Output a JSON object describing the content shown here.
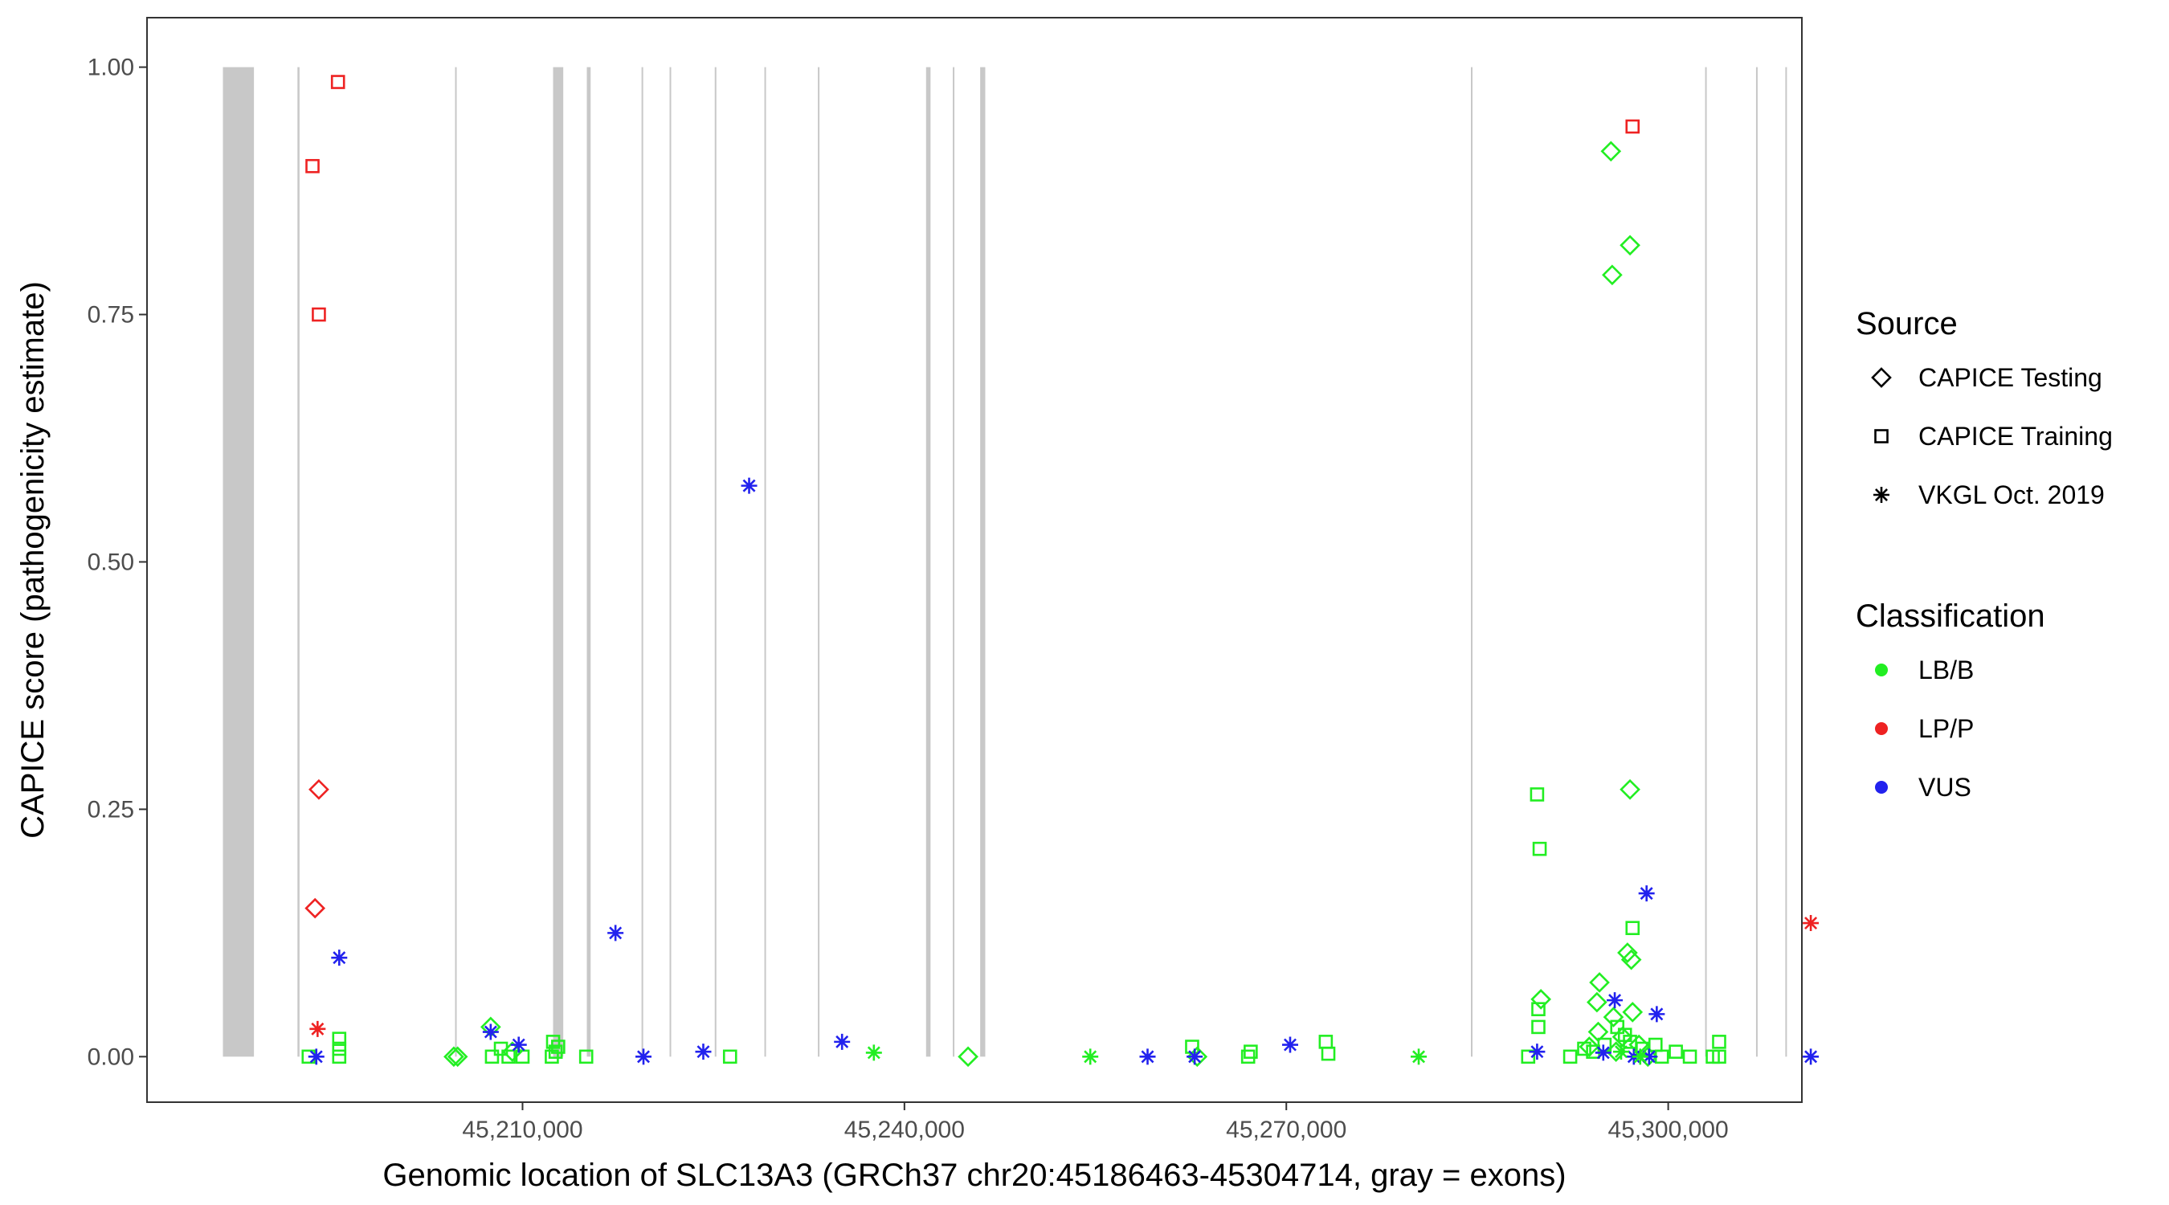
{
  "chart_data": {
    "type": "scatter",
    "title": "",
    "xlabel": "Genomic location of SLC13A3 (GRCh37 chr20:45186463-45304714, gray = exons)",
    "ylabel": "CAPICE score (pathogenicity estimate)",
    "xlim": [
      45180500,
      45310500
    ],
    "ylim": [
      -0.046,
      1.05
    ],
    "x_ticks": [
      45210000,
      45240000,
      45270000,
      45300000
    ],
    "x_tick_labels": [
      "45,210,000",
      "45,240,000",
      "45,270,000",
      "45,300,000"
    ],
    "y_ticks": [
      0,
      0.25,
      0.5,
      0.75,
      1
    ],
    "y_tick_labels": [
      "0.00",
      "0.25",
      "0.50",
      "0.75",
      "1.00"
    ],
    "grid": false,
    "panel_border": true,
    "exon_color": "#c8c8c8",
    "exons": [
      [
        45186463,
        45188900
      ],
      [
        45192320,
        45192480
      ],
      [
        45204700,
        45204820
      ],
      [
        45212400,
        45213200
      ],
      [
        45215050,
        45215350
      ],
      [
        45219350,
        45219450
      ],
      [
        45221550,
        45221650
      ],
      [
        45225100,
        45225200
      ],
      [
        45229000,
        45229120
      ],
      [
        45233200,
        45233320
      ],
      [
        45241700,
        45242050
      ],
      [
        45243800,
        45243920
      ],
      [
        45245950,
        45246350
      ],
      [
        45284500,
        45284620
      ],
      [
        45302900,
        45303020
      ],
      [
        45306900,
        45307020
      ],
      [
        45309200,
        45309320
      ]
    ],
    "colors": {
      "LB/B": "#22ee22",
      "LP/P": "#ee2222",
      "VUS": "#2222ee"
    },
    "legend_placement": "right",
    "legend": {
      "source_title": "Source",
      "source_items": [
        {
          "label": "CAPICE Testing",
          "shape": "diamond"
        },
        {
          "label": "CAPICE Training",
          "shape": "square"
        },
        {
          "label": "VKGL Oct. 2019",
          "shape": "asterisk"
        }
      ],
      "classification_title": "Classification",
      "classification_items": [
        {
          "label": "LB/B",
          "color": "#22ee22"
        },
        {
          "label": "LP/P",
          "color": "#ee2222"
        },
        {
          "label": "VUS",
          "color": "#2222ee"
        }
      ]
    },
    "series": [
      {
        "name": "CAPICE Testing",
        "shape": "diamond",
        "points": [
          {
            "x": 45194000,
            "y": 0.27,
            "class": "LP/P"
          },
          {
            "x": 45193700,
            "y": 0.15,
            "class": "LP/P"
          },
          {
            "x": 45204900,
            "y": 0.0,
            "class": "LB/B"
          },
          {
            "x": 45204600,
            "y": 0.0,
            "class": "LB/B"
          },
          {
            "x": 45207500,
            "y": 0.03,
            "class": "LB/B"
          },
          {
            "x": 45209200,
            "y": 0.005,
            "class": "LB/B"
          },
          {
            "x": 45245000,
            "y": 0.0,
            "class": "LB/B"
          },
          {
            "x": 45263000,
            "y": 0.0,
            "class": "LB/B"
          },
          {
            "x": 45295500,
            "y": 0.915,
            "class": "LB/B"
          },
          {
            "x": 45297000,
            "y": 0.82,
            "class": "LB/B"
          },
          {
            "x": 45295600,
            "y": 0.79,
            "class": "LB/B"
          },
          {
            "x": 45297000,
            "y": 0.27,
            "class": "LB/B"
          },
          {
            "x": 45296800,
            "y": 0.105,
            "class": "LB/B"
          },
          {
            "x": 45297100,
            "y": 0.098,
            "class": "LB/B"
          },
          {
            "x": 45290000,
            "y": 0.058,
            "class": "LB/B"
          },
          {
            "x": 45294600,
            "y": 0.075,
            "class": "LB/B"
          },
          {
            "x": 45294400,
            "y": 0.055,
            "class": "LB/B"
          },
          {
            "x": 45295700,
            "y": 0.04,
            "class": "LB/B"
          },
          {
            "x": 45297200,
            "y": 0.045,
            "class": "LB/B"
          },
          {
            "x": 45294500,
            "y": 0.025,
            "class": "LB/B"
          },
          {
            "x": 45296400,
            "y": 0.02,
            "class": "LB/B"
          },
          {
            "x": 45293800,
            "y": 0.01,
            "class": "LB/B"
          },
          {
            "x": 45295900,
            "y": 0.005,
            "class": "LB/B"
          },
          {
            "x": 45297700,
            "y": 0.012,
            "class": "LB/B"
          },
          {
            "x": 45298400,
            "y": 0.0,
            "class": "LB/B"
          }
        ]
      },
      {
        "name": "CAPICE Training",
        "shape": "square",
        "points": [
          {
            "x": 45195500,
            "y": 0.985,
            "class": "LP/P"
          },
          {
            "x": 45193500,
            "y": 0.9,
            "class": "LP/P"
          },
          {
            "x": 45194000,
            "y": 0.75,
            "class": "LP/P"
          },
          {
            "x": 45297200,
            "y": 0.94,
            "class": "LP/P"
          },
          {
            "x": 45193200,
            "y": 0.0,
            "class": "LB/B"
          },
          {
            "x": 45195600,
            "y": 0.0,
            "class": "LB/B"
          },
          {
            "x": 45195600,
            "y": 0.018,
            "class": "LB/B"
          },
          {
            "x": 45195600,
            "y": 0.008,
            "class": "LB/B"
          },
          {
            "x": 45207600,
            "y": 0.0,
            "class": "LB/B"
          },
          {
            "x": 45208300,
            "y": 0.008,
            "class": "LB/B"
          },
          {
            "x": 45208900,
            "y": 0.0,
            "class": "LB/B"
          },
          {
            "x": 45210000,
            "y": 0.0,
            "class": "LB/B"
          },
          {
            "x": 45212300,
            "y": 0.0,
            "class": "LB/B"
          },
          {
            "x": 45212400,
            "y": 0.015,
            "class": "LB/B"
          },
          {
            "x": 45212600,
            "y": 0.005,
            "class": "LB/B"
          },
          {
            "x": 45212800,
            "y": 0.01,
            "class": "LB/B"
          },
          {
            "x": 45215000,
            "y": 0.0,
            "class": "LB/B"
          },
          {
            "x": 45226300,
            "y": 0.0,
            "class": "LB/B"
          },
          {
            "x": 45262600,
            "y": 0.01,
            "class": "LB/B"
          },
          {
            "x": 45267000,
            "y": 0.0,
            "class": "LB/B"
          },
          {
            "x": 45267200,
            "y": 0.005,
            "class": "LB/B"
          },
          {
            "x": 45273100,
            "y": 0.015,
            "class": "LB/B"
          },
          {
            "x": 45273300,
            "y": 0.003,
            "class": "LB/B"
          },
          {
            "x": 45289700,
            "y": 0.265,
            "class": "LB/B"
          },
          {
            "x": 45289900,
            "y": 0.21,
            "class": "LB/B"
          },
          {
            "x": 45297200,
            "y": 0.13,
            "class": "LB/B"
          },
          {
            "x": 45289800,
            "y": 0.048,
            "class": "LB/B"
          },
          {
            "x": 45289800,
            "y": 0.03,
            "class": "LB/B"
          },
          {
            "x": 45289000,
            "y": 0.0,
            "class": "LB/B"
          },
          {
            "x": 45292300,
            "y": 0.0,
            "class": "LB/B"
          },
          {
            "x": 45293400,
            "y": 0.008,
            "class": "LB/B"
          },
          {
            "x": 45294100,
            "y": 0.005,
            "class": "LB/B"
          },
          {
            "x": 45295000,
            "y": 0.012,
            "class": "LB/B"
          },
          {
            "x": 45296000,
            "y": 0.03,
            "class": "LB/B"
          },
          {
            "x": 45296600,
            "y": 0.022,
            "class": "LB/B"
          },
          {
            "x": 45297000,
            "y": 0.015,
            "class": "LB/B"
          },
          {
            "x": 45298000,
            "y": 0.008,
            "class": "LB/B"
          },
          {
            "x": 45299000,
            "y": 0.012,
            "class": "LB/B"
          },
          {
            "x": 45299500,
            "y": 0.0,
            "class": "LB/B"
          },
          {
            "x": 45300600,
            "y": 0.005,
            "class": "LB/B"
          },
          {
            "x": 45301700,
            "y": 0.0,
            "class": "LB/B"
          },
          {
            "x": 45303500,
            "y": 0.0,
            "class": "LB/B"
          },
          {
            "x": 45304000,
            "y": 0.015,
            "class": "LB/B"
          },
          {
            "x": 45304000,
            "y": 0.0,
            "class": "LB/B"
          }
        ]
      },
      {
        "name": "VKGL Oct. 2019",
        "shape": "asterisk",
        "points": [
          {
            "x": 45193900,
            "y": 0.028,
            "class": "LP/P"
          },
          {
            "x": 45311200,
            "y": 0.135,
            "class": "LP/P"
          },
          {
            "x": 45193800,
            "y": 0.0,
            "class": "VUS"
          },
          {
            "x": 45195600,
            "y": 0.1,
            "class": "VUS"
          },
          {
            "x": 45207500,
            "y": 0.025,
            "class": "VUS"
          },
          {
            "x": 45209700,
            "y": 0.012,
            "class": "VUS"
          },
          {
            "x": 45217300,
            "y": 0.125,
            "class": "VUS"
          },
          {
            "x": 45219500,
            "y": 0.0,
            "class": "VUS"
          },
          {
            "x": 45224200,
            "y": 0.005,
            "class": "VUS"
          },
          {
            "x": 45227800,
            "y": 0.577,
            "class": "VUS"
          },
          {
            "x": 45235100,
            "y": 0.015,
            "class": "VUS"
          },
          {
            "x": 45259100,
            "y": 0.0,
            "class": "VUS"
          },
          {
            "x": 45262800,
            "y": 0.0,
            "class": "VUS"
          },
          {
            "x": 45270300,
            "y": 0.012,
            "class": "VUS"
          },
          {
            "x": 45289700,
            "y": 0.005,
            "class": "VUS"
          },
          {
            "x": 45295800,
            "y": 0.057,
            "class": "VUS"
          },
          {
            "x": 45298300,
            "y": 0.165,
            "class": "VUS"
          },
          {
            "x": 45299100,
            "y": 0.043,
            "class": "VUS"
          },
          {
            "x": 45294900,
            "y": 0.004,
            "class": "VUS"
          },
          {
            "x": 45297300,
            "y": 0.0,
            "class": "VUS"
          },
          {
            "x": 45298500,
            "y": 0.0,
            "class": "VUS"
          },
          {
            "x": 45311200,
            "y": 0.0,
            "class": "VUS"
          },
          {
            "x": 45237600,
            "y": 0.004,
            "class": "LB/B"
          },
          {
            "x": 45254600,
            "y": 0.0,
            "class": "LB/B"
          },
          {
            "x": 45280400,
            "y": 0.0,
            "class": "LB/B"
          },
          {
            "x": 45296300,
            "y": 0.005,
            "class": "LB/B"
          },
          {
            "x": 45297800,
            "y": 0.0,
            "class": "LB/B"
          }
        ]
      }
    ]
  }
}
